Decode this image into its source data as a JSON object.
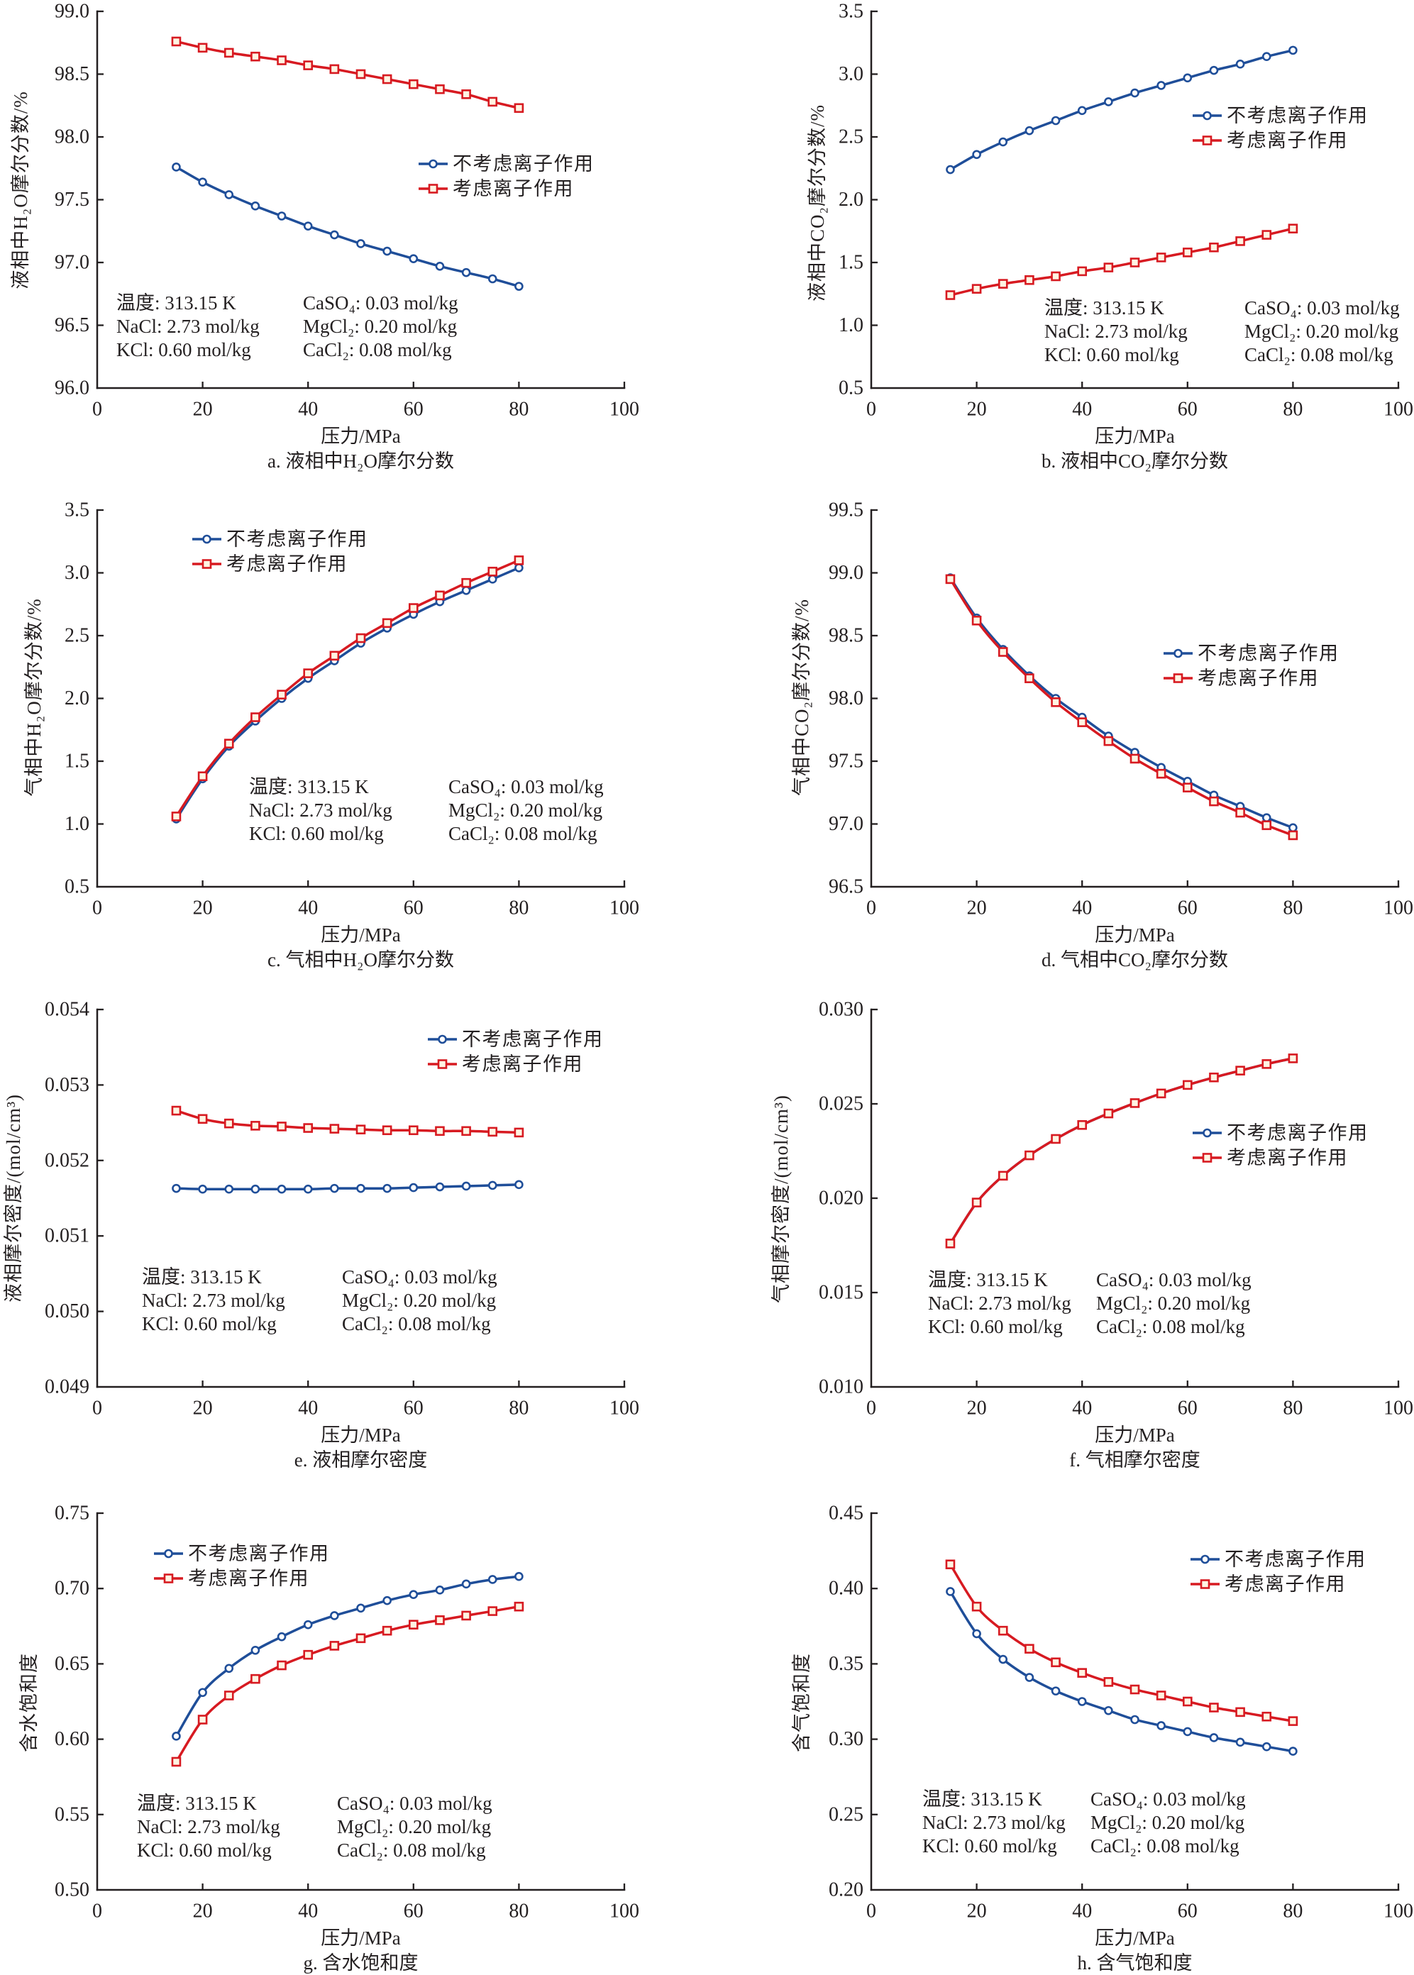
{
  "chart_data": [
    {
      "id": "a",
      "type": "line",
      "title": "a. 液相中H₂O摩尔分数",
      "xlabel": "压力/MPa",
      "ylabel": "液相中H₂O摩尔分数/%",
      "xlim": [
        0,
        100
      ],
      "ylim": [
        96.0,
        99.0
      ],
      "xticks": [
        0,
        20,
        40,
        60,
        80,
        100
      ],
      "xtick_labels": [
        "0",
        "20",
        "40",
        "60",
        "80",
        "100"
      ],
      "yticks": [
        96.0,
        96.5,
        97.0,
        97.5,
        98.0,
        98.5,
        99.0
      ],
      "ytick_labels": [
        "96.0",
        "96.5",
        "97.0",
        "97.5",
        "98.0",
        "98.5",
        "99.0"
      ],
      "grid": false,
      "legend_position": "center-right",
      "x": [
        15,
        20,
        25,
        30,
        35,
        40,
        45,
        50,
        55,
        60,
        65,
        70,
        75,
        80
      ],
      "series": [
        {
          "name": "不考虑离子作用",
          "marker": "circle",
          "color": "#1f4e99",
          "values": [
            97.76,
            97.64,
            97.54,
            97.45,
            97.37,
            97.29,
            97.22,
            97.15,
            97.09,
            97.03,
            96.97,
            96.92,
            96.87,
            96.81
          ]
        },
        {
          "name": "考虑离子作用",
          "marker": "square",
          "color": "#d71a21",
          "values": [
            98.76,
            98.71,
            98.67,
            98.64,
            98.61,
            98.57,
            98.54,
            98.5,
            98.46,
            98.42,
            98.38,
            98.34,
            98.28,
            98.23
          ]
        }
      ],
      "annotations": [
        "温度: 313.15 K",
        "NaCl: 2.73 mol/kg",
        "KCl: 0.60 mol/kg",
        "CaSO₄: 0.03 mol/kg",
        "MgCl₂: 0.20 mol/kg",
        "CaCl₂: 0.08 mol/kg"
      ]
    },
    {
      "id": "b",
      "type": "line",
      "title": "b. 液相中CO₂摩尔分数",
      "xlabel": "压力/MPa",
      "ylabel": "液相中CO₂摩尔分数/%",
      "xlim": [
        0,
        100
      ],
      "ylim": [
        0.5,
        3.5
      ],
      "xticks": [
        0,
        20,
        40,
        60,
        80,
        100
      ],
      "xtick_labels": [
        "0",
        "20",
        "40",
        "60",
        "80",
        "100"
      ],
      "yticks": [
        0.5,
        1.0,
        1.5,
        2.0,
        2.5,
        3.0,
        3.5
      ],
      "ytick_labels": [
        "0.5",
        "1.0",
        "1.5",
        "2.0",
        "2.5",
        "3.0",
        "3.5"
      ],
      "grid": false,
      "legend_position": "upper-right",
      "x": [
        15,
        20,
        25,
        30,
        35,
        40,
        45,
        50,
        55,
        60,
        65,
        70,
        75,
        80
      ],
      "series": [
        {
          "name": "不考虑离子作用",
          "marker": "circle",
          "color": "#1f4e99",
          "values": [
            2.24,
            2.36,
            2.46,
            2.55,
            2.63,
            2.71,
            2.78,
            2.85,
            2.91,
            2.97,
            3.03,
            3.08,
            3.14,
            3.19
          ]
        },
        {
          "name": "考虑离子作用",
          "marker": "square",
          "color": "#d71a21",
          "values": [
            1.24,
            1.29,
            1.33,
            1.36,
            1.39,
            1.43,
            1.46,
            1.5,
            1.54,
            1.58,
            1.62,
            1.67,
            1.72,
            1.77
          ]
        }
      ],
      "annotations": [
        "温度: 313.15 K",
        "NaCl: 2.73 mol/kg",
        "KCl: 0.60 mol/kg",
        "CaSO₄: 0.03 mol/kg",
        "MgCl₂: 0.20 mol/kg",
        "CaCl₂: 0.08 mol/kg"
      ]
    },
    {
      "id": "c",
      "type": "line",
      "title": "c. 气相中H₂O摩尔分数",
      "xlabel": "压力/MPa",
      "ylabel": "气相中H₂O摩尔分数/%",
      "xlim": [
        0,
        100
      ],
      "ylim": [
        0.5,
        3.5
      ],
      "xticks": [
        0,
        20,
        40,
        60,
        80,
        100
      ],
      "xtick_labels": [
        "0",
        "20",
        "40",
        "60",
        "80",
        "100"
      ],
      "yticks": [
        0.5,
        1.0,
        1.5,
        2.0,
        2.5,
        3.0,
        3.5
      ],
      "ytick_labels": [
        "0.5",
        "1.0",
        "1.5",
        "2.0",
        "2.5",
        "3.0",
        "3.5"
      ],
      "grid": false,
      "legend_position": "upper-left",
      "x": [
        15,
        20,
        25,
        30,
        35,
        40,
        45,
        50,
        55,
        60,
        65,
        70,
        75,
        80
      ],
      "series": [
        {
          "name": "不考虑离子作用",
          "marker": "circle",
          "color": "#1f4e99",
          "values": [
            1.04,
            1.36,
            1.62,
            1.82,
            2.0,
            2.16,
            2.3,
            2.44,
            2.56,
            2.67,
            2.77,
            2.86,
            2.95,
            3.04
          ]
        },
        {
          "name": "考虑离子作用",
          "marker": "square",
          "color": "#d71a21",
          "values": [
            1.06,
            1.38,
            1.64,
            1.85,
            2.03,
            2.2,
            2.34,
            2.48,
            2.6,
            2.72,
            2.82,
            2.92,
            3.01,
            3.1
          ]
        }
      ],
      "annotations": [
        "温度: 313.15 K",
        "NaCl: 2.73 mol/kg",
        "KCl: 0.60 mol/kg",
        "CaSO₄: 0.03 mol/kg",
        "MgCl₂: 0.20 mol/kg",
        "CaCl₂: 0.08 mol/kg"
      ]
    },
    {
      "id": "d",
      "type": "line",
      "title": "d. 气相中CO₂摩尔分数",
      "xlabel": "压力/MPa",
      "ylabel": "气相中CO₂摩尔分数/%",
      "xlim": [
        0,
        100
      ],
      "ylim": [
        96.5,
        99.5
      ],
      "xticks": [
        0,
        20,
        40,
        60,
        80,
        100
      ],
      "xtick_labels": [
        "0",
        "20",
        "40",
        "60",
        "80",
        "100"
      ],
      "yticks": [
        96.5,
        97.0,
        97.5,
        98.0,
        98.5,
        99.0,
        99.5
      ],
      "ytick_labels": [
        "96.5",
        "97.0",
        "97.5",
        "98.0",
        "98.5",
        "99.0",
        "99.5"
      ],
      "grid": false,
      "legend_position": "center-right",
      "x": [
        15,
        20,
        25,
        30,
        35,
        40,
        45,
        50,
        55,
        60,
        65,
        70,
        75,
        80
      ],
      "series": [
        {
          "name": "不考虑离子作用",
          "marker": "circle",
          "color": "#1f4e99",
          "values": [
            98.96,
            98.64,
            98.39,
            98.18,
            98.0,
            97.85,
            97.7,
            97.57,
            97.45,
            97.34,
            97.23,
            97.14,
            97.05,
            96.97
          ]
        },
        {
          "name": "考虑离子作用",
          "marker": "square",
          "color": "#d71a21",
          "values": [
            98.95,
            98.62,
            98.37,
            98.16,
            97.97,
            97.81,
            97.66,
            97.52,
            97.4,
            97.29,
            97.18,
            97.09,
            96.99,
            96.91
          ]
        }
      ],
      "annotations": []
    },
    {
      "id": "e",
      "type": "line",
      "title": "e. 液相摩尔密度",
      "xlabel": "压力/MPa",
      "ylabel": "液相摩尔密度/(mol/cm³)",
      "xlim": [
        0,
        100
      ],
      "ylim": [
        0.049,
        0.054
      ],
      "xticks": [
        0,
        20,
        40,
        60,
        80,
        100
      ],
      "xtick_labels": [
        "0",
        "20",
        "40",
        "60",
        "80",
        "100"
      ],
      "yticks": [
        0.049,
        0.05,
        0.051,
        0.052,
        0.053,
        0.054
      ],
      "ytick_labels": [
        "0.049",
        "0.050",
        "0.051",
        "0.052",
        "0.053",
        "0.054"
      ],
      "grid": false,
      "legend_position": "upper-right",
      "x": [
        15,
        20,
        25,
        30,
        35,
        40,
        45,
        50,
        55,
        60,
        65,
        70,
        75,
        80
      ],
      "series": [
        {
          "name": "不考虑离子作用",
          "marker": "circle",
          "color": "#1f4e99",
          "values": [
            0.05163,
            0.05162,
            0.05162,
            0.05162,
            0.05162,
            0.05162,
            0.05163,
            0.05163,
            0.05163,
            0.05164,
            0.05165,
            0.05166,
            0.05167,
            0.05168
          ]
        },
        {
          "name": "考虑离子作用",
          "marker": "square",
          "color": "#d71a21",
          "values": [
            0.05266,
            0.05255,
            0.05249,
            0.05246,
            0.05245,
            0.05243,
            0.05242,
            0.05241,
            0.0524,
            0.0524,
            0.05239,
            0.05239,
            0.05238,
            0.05237
          ]
        }
      ],
      "annotations": [
        "温度: 313.15 K",
        "NaCl: 2.73 mol/kg",
        "KCl: 0.60 mol/kg",
        "CaSO₄: 0.03 mol/kg",
        "MgCl₂: 0.20 mol/kg",
        "CaCl₂: 0.08 mol/kg"
      ]
    },
    {
      "id": "f",
      "type": "line",
      "title": "f. 气相摩尔密度",
      "xlabel": "压力/MPa",
      "ylabel": "气相摩尔密度/(mol/cm³)",
      "xlim": [
        0,
        100
      ],
      "ylim": [
        0.01,
        0.03
      ],
      "xticks": [
        0,
        20,
        40,
        60,
        80,
        100
      ],
      "xtick_labels": [
        "0",
        "20",
        "40",
        "60",
        "80",
        "100"
      ],
      "yticks": [
        0.01,
        0.015,
        0.02,
        0.025,
        0.03
      ],
      "ytick_labels": [
        "0.010",
        "0.015",
        "0.020",
        "0.025",
        "0.030"
      ],
      "grid": false,
      "legend_position": "center-right",
      "x": [
        15,
        20,
        25,
        30,
        35,
        40,
        45,
        50,
        55,
        60,
        65,
        70,
        75,
        80
      ],
      "series": [
        {
          "name": "不考虑离子作用",
          "marker": "circle",
          "color": "#1f4e99",
          "values": [
            0.0176,
            0.01977,
            0.02119,
            0.02227,
            0.02314,
            0.02388,
            0.02449,
            0.02504,
            0.02555,
            0.026,
            0.0264,
            0.02676,
            0.02711,
            0.02741
          ]
        },
        {
          "name": "考虑离子作用",
          "marker": "square",
          "color": "#d71a21",
          "values": [
            0.0176,
            0.01977,
            0.02119,
            0.02227,
            0.02314,
            0.02388,
            0.02449,
            0.02504,
            0.02555,
            0.026,
            0.0264,
            0.02676,
            0.02711,
            0.02741
          ]
        }
      ],
      "annotations": [
        "温度: 313.15 K",
        "NaCl: 2.73 mol/kg",
        "KCl: 0.60 mol/kg",
        "CaSO₄: 0.03 mol/kg",
        "MgCl₂: 0.20 mol/kg",
        "CaCl₂: 0.08 mol/kg"
      ]
    },
    {
      "id": "g",
      "type": "line",
      "title": "g. 含水饱和度",
      "xlabel": "压力/MPa",
      "ylabel": "含水饱和度",
      "xlim": [
        0,
        100
      ],
      "ylim": [
        0.5,
        0.75
      ],
      "xticks": [
        0,
        20,
        40,
        60,
        80,
        100
      ],
      "xtick_labels": [
        "0",
        "20",
        "40",
        "60",
        "80",
        "100"
      ],
      "yticks": [
        0.5,
        0.55,
        0.6,
        0.65,
        0.7,
        0.75
      ],
      "ytick_labels": [
        "0.50",
        "0.55",
        "0.60",
        "0.65",
        "0.70",
        "0.75"
      ],
      "grid": false,
      "legend_position": "upper-left",
      "x": [
        15,
        20,
        25,
        30,
        35,
        40,
        45,
        50,
        55,
        60,
        65,
        70,
        75,
        80
      ],
      "series": [
        {
          "name": "不考虑离子作用",
          "marker": "circle",
          "color": "#1f4e99",
          "values": [
            0.602,
            0.631,
            0.647,
            0.659,
            0.668,
            0.676,
            0.682,
            0.687,
            0.692,
            0.696,
            0.699,
            0.703,
            0.706,
            0.708
          ]
        },
        {
          "name": "考虑离子作用",
          "marker": "square",
          "color": "#d71a21",
          "values": [
            0.585,
            0.613,
            0.629,
            0.64,
            0.649,
            0.656,
            0.662,
            0.667,
            0.672,
            0.676,
            0.679,
            0.682,
            0.685,
            0.688
          ]
        }
      ],
      "annotations": [
        "温度: 313.15 K",
        "NaCl: 2.73 mol/kg",
        "KCl: 0.60 mol/kg",
        "CaSO₄: 0.03 mol/kg",
        "MgCl₂: 0.20 mol/kg",
        "CaCl₂: 0.08 mol/kg"
      ]
    },
    {
      "id": "h",
      "type": "line",
      "title": "h. 含气饱和度",
      "xlabel": "压力/MPa",
      "ylabel": "含气饱和度",
      "xlim": [
        0,
        100
      ],
      "ylim": [
        0.2,
        0.45
      ],
      "xticks": [
        0,
        20,
        40,
        60,
        80,
        100
      ],
      "xtick_labels": [
        "0",
        "20",
        "40",
        "60",
        "80",
        "100"
      ],
      "yticks": [
        0.2,
        0.25,
        0.3,
        0.35,
        0.4,
        0.45
      ],
      "ytick_labels": [
        "0.20",
        "0.25",
        "0.30",
        "0.35",
        "0.40",
        "0.45"
      ],
      "grid": false,
      "legend_position": "upper-right",
      "x": [
        15,
        20,
        25,
        30,
        35,
        40,
        45,
        50,
        55,
        60,
        65,
        70,
        75,
        80
      ],
      "series": [
        {
          "name": "不考虑离子作用",
          "marker": "circle",
          "color": "#1f4e99",
          "values": [
            0.398,
            0.37,
            0.353,
            0.341,
            0.332,
            0.325,
            0.319,
            0.313,
            0.309,
            0.305,
            0.301,
            0.298,
            0.295,
            0.292
          ]
        },
        {
          "name": "考虑离子作用",
          "marker": "square",
          "color": "#d71a21",
          "values": [
            0.416,
            0.388,
            0.372,
            0.36,
            0.351,
            0.344,
            0.338,
            0.333,
            0.329,
            0.325,
            0.321,
            0.318,
            0.315,
            0.312
          ]
        }
      ],
      "annotations": [
        "温度: 313.15 K",
        "NaCl: 2.73 mol/kg",
        "KCl: 0.60 mol/kg",
        "CaSO₄: 0.03 mol/kg",
        "MgCl₂: 0.20 mol/kg",
        "CaCl₂: 0.08 mol/kg"
      ]
    }
  ]
}
